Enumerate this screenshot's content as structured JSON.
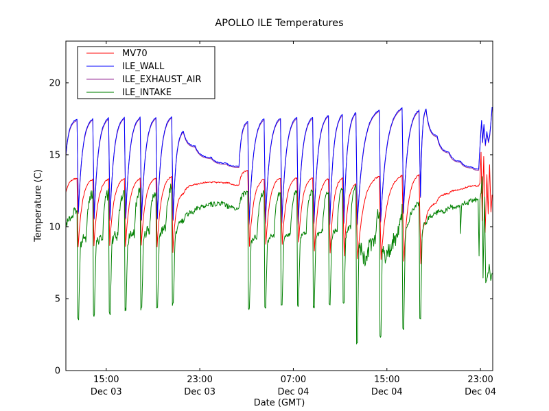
{
  "figure": {
    "title": "APOLLO ILE Temperatures",
    "xlabel": "Date (GMT)",
    "ylabel": "Temperature (C)",
    "background": "#ffffff",
    "frame_color": "#000000"
  },
  "chart_data": {
    "type": "line",
    "title": "APOLLO ILE Temperatures",
    "xlabel": "Date (GMT)",
    "ylabel": "Temperature (C)",
    "grid": false,
    "legend_position": "upper-left",
    "x_unit": "hours since Dec 03 00:00 GMT",
    "xlim": [
      11.55,
      48.05
    ],
    "ylim": [
      0,
      22.9
    ],
    "yticks": [
      0,
      5,
      10,
      15,
      20
    ],
    "xticks": [
      {
        "t": 15,
        "time": "15:00",
        "date": "Dec 03"
      },
      {
        "t": 23,
        "time": "23:00",
        "date": "Dec 03"
      },
      {
        "t": 31,
        "time": "07:00",
        "date": "Dec 04"
      },
      {
        "t": 39,
        "time": "15:00",
        "date": "Dec 04"
      },
      {
        "t": 47,
        "time": "23:00",
        "date": "Dec 04"
      }
    ],
    "series": [
      {
        "name": "ILE_EXHAUST_AIR",
        "color": "#993399",
        "noise": 0.0,
        "coincides_with": "ILE_WALL",
        "offset": -0.08,
        "note": "trace coincides with ILE_WALL and is hidden beneath it",
        "points": []
      },
      {
        "name": "ILE_WALL",
        "color": "#0000ff",
        "noise": 0.04,
        "points": [
          [
            11.55,
            15.0
          ],
          [
            12.5,
            17.45
          ],
          [
            12.62,
            11.0
          ],
          [
            13.85,
            17.5
          ],
          [
            13.97,
            10.6
          ],
          [
            15.2,
            17.55
          ],
          [
            15.32,
            10.5
          ],
          [
            16.55,
            17.6
          ],
          [
            16.67,
            10.6
          ],
          [
            17.9,
            17.6
          ],
          [
            18.02,
            10.5
          ],
          [
            19.25,
            17.6
          ],
          [
            19.37,
            10.6
          ],
          [
            20.6,
            17.65
          ],
          [
            20.72,
            10.5
          ],
          [
            21.6,
            16.65
          ],
          [
            22.6,
            15.6
          ],
          [
            24.0,
            14.8
          ],
          [
            25.3,
            14.4
          ],
          [
            26.35,
            14.2
          ],
          [
            27.1,
            17.3
          ],
          [
            27.22,
            10.2
          ],
          [
            28.5,
            17.5
          ],
          [
            28.62,
            10.3
          ],
          [
            29.9,
            17.55
          ],
          [
            30.02,
            10.3
          ],
          [
            31.3,
            17.6
          ],
          [
            31.42,
            10.2
          ],
          [
            32.65,
            17.6
          ],
          [
            32.77,
            10.3
          ],
          [
            34.0,
            17.75
          ],
          [
            34.12,
            10.2
          ],
          [
            35.2,
            17.8
          ],
          [
            35.32,
            10.3
          ],
          [
            36.35,
            17.95
          ],
          [
            36.47,
            10.2
          ],
          [
            38.35,
            18.1
          ],
          [
            38.47,
            10.4
          ],
          [
            40.3,
            18.25
          ],
          [
            40.42,
            11.0
          ],
          [
            41.75,
            18.1
          ],
          [
            41.87,
            12.1
          ],
          [
            42.35,
            18.2
          ],
          [
            43.3,
            16.3
          ],
          [
            44.3,
            15.2
          ],
          [
            45.3,
            14.55
          ],
          [
            46.3,
            14.15
          ],
          [
            46.85,
            14.0
          ],
          [
            47.0,
            16.2
          ],
          [
            47.1,
            17.4
          ],
          [
            47.18,
            15.9
          ],
          [
            47.3,
            17.1
          ],
          [
            47.42,
            15.7
          ],
          [
            47.55,
            16.6
          ],
          [
            47.68,
            15.9
          ],
          [
            47.8,
            16.4
          ],
          [
            48.0,
            18.3
          ]
        ]
      },
      {
        "name": "MV70",
        "color": "#ff0000",
        "noise": 0.05,
        "points": [
          [
            11.55,
            12.4
          ],
          [
            12.5,
            13.35
          ],
          [
            12.6,
            8.6
          ],
          [
            13.85,
            13.3
          ],
          [
            13.95,
            8.7
          ],
          [
            15.2,
            13.3
          ],
          [
            15.3,
            8.7
          ],
          [
            16.55,
            13.35
          ],
          [
            16.65,
            8.6
          ],
          [
            17.9,
            13.35
          ],
          [
            18.0,
            8.7
          ],
          [
            19.25,
            13.4
          ],
          [
            19.35,
            8.6
          ],
          [
            20.6,
            13.5
          ],
          [
            20.7,
            8.2
          ],
          [
            21.6,
            12.3
          ],
          [
            22.8,
            12.95
          ],
          [
            24.3,
            13.1
          ],
          [
            25.5,
            13.05
          ],
          [
            26.35,
            12.9
          ],
          [
            27.1,
            13.9
          ],
          [
            27.25,
            8.6
          ],
          [
            28.5,
            13.3
          ],
          [
            28.65,
            8.8
          ],
          [
            29.9,
            13.4
          ],
          [
            30.05,
            8.8
          ],
          [
            31.3,
            13.4
          ],
          [
            31.45,
            8.9
          ],
          [
            32.65,
            13.4
          ],
          [
            32.8,
            8.3
          ],
          [
            34.0,
            13.35
          ],
          [
            34.15,
            8.2
          ],
          [
            35.2,
            13.4
          ],
          [
            35.35,
            8.0
          ],
          [
            36.35,
            13.0
          ],
          [
            36.5,
            7.8
          ],
          [
            38.35,
            13.5
          ],
          [
            38.5,
            7.7
          ],
          [
            40.3,
            13.55
          ],
          [
            40.45,
            7.6
          ],
          [
            41.75,
            13.6
          ],
          [
            41.9,
            7.4
          ],
          [
            42.3,
            10.3
          ],
          [
            43.2,
            11.6
          ],
          [
            44.3,
            12.3
          ],
          [
            45.5,
            12.6
          ],
          [
            46.85,
            12.85
          ],
          [
            46.95,
            13.0
          ],
          [
            47.05,
            15.2
          ],
          [
            47.15,
            10.4
          ],
          [
            47.28,
            14.9
          ],
          [
            47.4,
            9.6
          ],
          [
            47.55,
            13.6
          ],
          [
            47.66,
            10.9
          ],
          [
            47.78,
            14.3
          ],
          [
            47.9,
            11.0
          ],
          [
            48.0,
            12.2
          ]
        ]
      },
      {
        "name": "ILE_INTAKE",
        "color": "#008000",
        "noise": 0.18,
        "noise_windows": [
          {
            "t0": 11.55,
            "t1": 20.95,
            "amp": 0.38
          },
          {
            "t0": 36.55,
            "t1": 40.3,
            "amp": 0.55
          }
        ],
        "points": [
          [
            11.55,
            10.2
          ],
          [
            12.0,
            10.6
          ],
          [
            12.5,
            11.0
          ],
          [
            12.56,
            3.6
          ],
          [
            12.64,
            3.6
          ],
          [
            12.78,
            8.6
          ],
          [
            13.3,
            9.3
          ],
          [
            13.85,
            12.3
          ],
          [
            13.91,
            3.9
          ],
          [
            13.99,
            3.9
          ],
          [
            14.13,
            8.7
          ],
          [
            14.7,
            9.2
          ],
          [
            15.2,
            12.3
          ],
          [
            15.26,
            4.0
          ],
          [
            15.34,
            4.0
          ],
          [
            15.48,
            8.8
          ],
          [
            16.0,
            9.4
          ],
          [
            16.55,
            12.4
          ],
          [
            16.61,
            4.2
          ],
          [
            16.69,
            4.2
          ],
          [
            16.83,
            8.8
          ],
          [
            17.4,
            9.6
          ],
          [
            17.9,
            12.4
          ],
          [
            17.96,
            4.3
          ],
          [
            18.04,
            4.3
          ],
          [
            18.18,
            8.9
          ],
          [
            18.7,
            9.8
          ],
          [
            19.25,
            12.5
          ],
          [
            19.31,
            4.4
          ],
          [
            19.39,
            4.4
          ],
          [
            19.53,
            9.0
          ],
          [
            20.1,
            10.0
          ],
          [
            20.6,
            12.7
          ],
          [
            20.66,
            4.6
          ],
          [
            20.74,
            4.6
          ],
          [
            20.88,
            9.0
          ],
          [
            21.6,
            10.4
          ],
          [
            22.5,
            11.0
          ],
          [
            23.5,
            11.4
          ],
          [
            25.0,
            11.6
          ],
          [
            26.35,
            11.3
          ],
          [
            27.1,
            12.4
          ],
          [
            27.16,
            4.3
          ],
          [
            27.24,
            4.3
          ],
          [
            27.38,
            8.8
          ],
          [
            27.9,
            9.3
          ],
          [
            28.5,
            12.4
          ],
          [
            28.56,
            4.4
          ],
          [
            28.64,
            4.4
          ],
          [
            28.78,
            8.8
          ],
          [
            29.35,
            9.4
          ],
          [
            29.9,
            12.4
          ],
          [
            29.96,
            4.5
          ],
          [
            30.04,
            4.5
          ],
          [
            30.18,
            8.9
          ],
          [
            30.75,
            9.5
          ],
          [
            31.3,
            12.5
          ],
          [
            31.36,
            4.5
          ],
          [
            31.44,
            4.5
          ],
          [
            31.58,
            8.9
          ],
          [
            32.1,
            9.6
          ],
          [
            32.65,
            12.5
          ],
          [
            32.71,
            4.4
          ],
          [
            32.79,
            4.4
          ],
          [
            32.93,
            9.0
          ],
          [
            33.5,
            9.7
          ],
          [
            34.0,
            12.5
          ],
          [
            34.06,
            4.6
          ],
          [
            34.14,
            4.6
          ],
          [
            34.28,
            9.0
          ],
          [
            34.75,
            9.8
          ],
          [
            35.2,
            12.6
          ],
          [
            35.26,
            4.7
          ],
          [
            35.34,
            4.7
          ],
          [
            35.48,
            9.1
          ],
          [
            35.9,
            10.0
          ],
          [
            36.35,
            12.9
          ],
          [
            36.41,
            1.9
          ],
          [
            36.49,
            1.9
          ],
          [
            36.61,
            8.8
          ],
          [
            36.9,
            8.2
          ],
          [
            37.3,
            7.6
          ],
          [
            37.7,
            8.8
          ],
          [
            38.0,
            9.3
          ],
          [
            38.35,
            10.9
          ],
          [
            38.41,
            2.4
          ],
          [
            38.49,
            2.4
          ],
          [
            38.61,
            8.6
          ],
          [
            38.9,
            7.8
          ],
          [
            39.3,
            8.3
          ],
          [
            39.7,
            9.1
          ],
          [
            40.0,
            9.9
          ],
          [
            40.3,
            11.1
          ],
          [
            40.36,
            2.9
          ],
          [
            40.44,
            2.9
          ],
          [
            40.56,
            8.9
          ],
          [
            40.9,
            10.3
          ],
          [
            41.3,
            11.1
          ],
          [
            41.75,
            11.6
          ],
          [
            41.81,
            3.6
          ],
          [
            41.89,
            3.6
          ],
          [
            42.01,
            9.4
          ],
          [
            42.4,
            10.3
          ],
          [
            43.0,
            10.8
          ],
          [
            44.0,
            11.1
          ],
          [
            45.0,
            11.4
          ],
          [
            45.24,
            11.5
          ],
          [
            45.3,
            9.5
          ],
          [
            45.38,
            11.4
          ],
          [
            46.0,
            11.7
          ],
          [
            46.6,
            11.85
          ],
          [
            46.8,
            11.9
          ],
          [
            46.88,
            7.9
          ],
          [
            46.95,
            11.9
          ],
          [
            47.05,
            12.4
          ],
          [
            47.15,
            13.4
          ],
          [
            47.22,
            6.4
          ],
          [
            47.35,
            12.1
          ],
          [
            47.45,
            6.1
          ],
          [
            47.6,
            6.5
          ],
          [
            47.75,
            7.3
          ],
          [
            47.88,
            6.3
          ],
          [
            48.0,
            6.7
          ]
        ]
      }
    ],
    "legend_order": [
      "MV70",
      "ILE_WALL",
      "ILE_EXHAUST_AIR",
      "ILE_INTAKE"
    ]
  }
}
